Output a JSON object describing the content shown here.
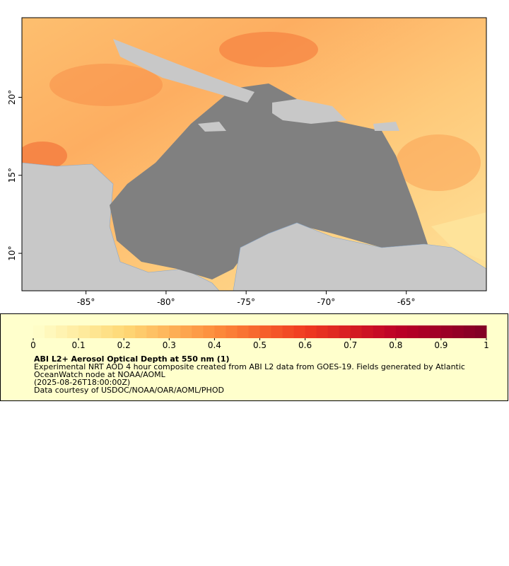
{
  "map": {
    "xlim": [
      -89,
      -60
    ],
    "ylim": [
      7.6,
      25.1
    ],
    "xticks": [
      {
        "value": -85,
        "label": "-85°"
      },
      {
        "value": -80,
        "label": "-80°"
      },
      {
        "value": -75,
        "label": "-75°"
      },
      {
        "value": -70,
        "label": "-70°"
      },
      {
        "value": -65,
        "label": "-65°"
      }
    ],
    "yticks": [
      {
        "value": 10,
        "label": "10°"
      },
      {
        "value": 15,
        "label": "15°"
      },
      {
        "value": 20,
        "label": "20°"
      }
    ]
  },
  "colorbar": {
    "lim": [
      0,
      1
    ],
    "ticks": [
      0,
      0.1,
      0.2,
      0.3,
      0.4,
      0.5,
      0.6,
      0.7,
      0.8,
      0.9,
      1
    ]
  },
  "caption": {
    "title": "ABI L2+ Aerosol Optical Depth at 550 nm (1)",
    "lines": [
      "Experimental NRT AOD 4 hour composite created from ABI L2 data from GOES-19. Fields generated by Atlantic",
      "OceanWatch node at NOAA/AOML",
      "(2025-08-26T18:00:00Z)",
      "Data courtesy of USDOC/NOAA/OAR/AOML/PHOD"
    ]
  }
}
